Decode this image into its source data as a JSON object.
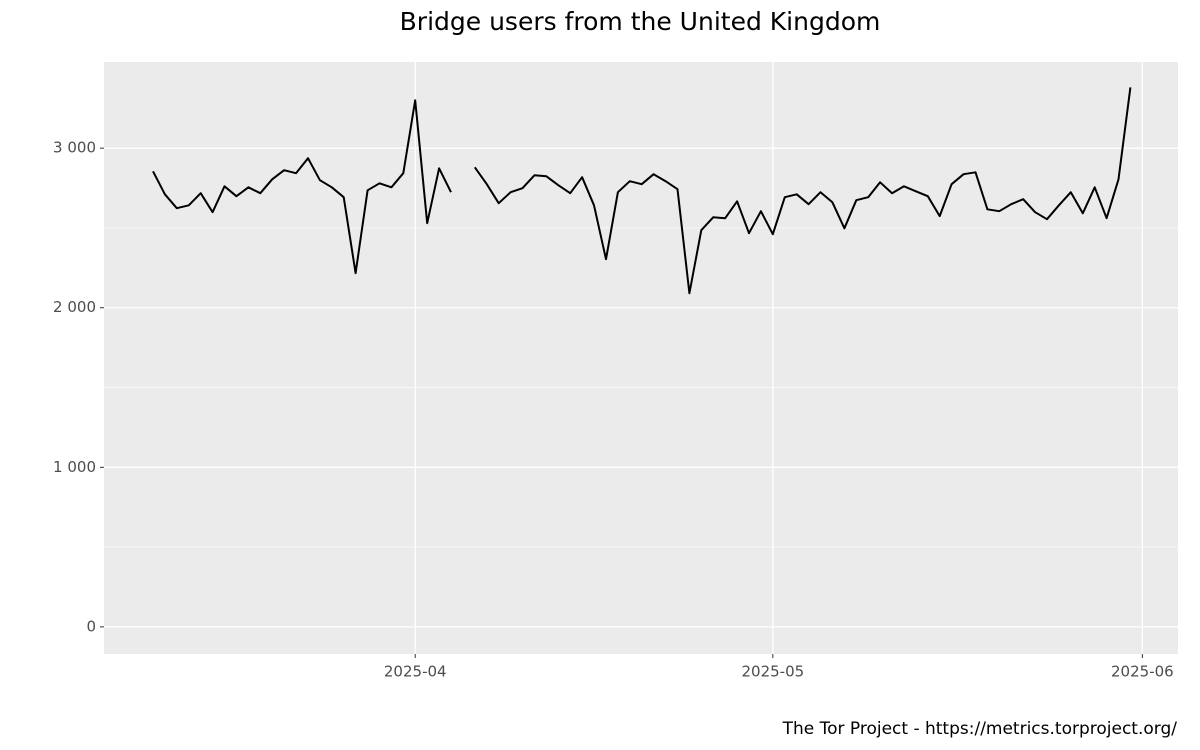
{
  "chart_data": {
    "type": "line",
    "title": "Bridge users from the United Kingdom",
    "caption": "The Tor Project - https://metrics.torproject.org/",
    "categories": [
      null,
      null,
      null,
      null,
      null,
      null,
      null,
      null,
      null,
      null,
      null,
      null,
      null,
      null,
      null,
      null,
      null,
      null,
      null,
      null,
      null,
      null,
      "2025-04",
      null,
      null,
      null,
      null,
      null,
      null,
      null,
      null,
      null,
      null,
      null,
      null,
      null,
      null,
      null,
      null,
      null,
      null,
      null,
      null,
      null,
      null,
      null,
      null,
      null,
      null,
      null,
      null,
      null,
      "2025-05",
      null,
      null,
      null,
      null,
      null,
      null,
      null,
      null,
      null,
      null,
      null,
      null,
      null,
      null,
      null,
      null,
      null,
      null,
      null,
      null,
      null,
      null,
      null,
      null,
      null,
      null,
      null,
      null,
      null,
      null,
      "2025-06"
    ],
    "values": [
      2855,
      2711,
      2624,
      2642,
      2718,
      2599,
      2761,
      2699,
      2755,
      2718,
      2805,
      2862,
      2843,
      2937,
      2799,
      2755,
      2693,
      2217,
      2736,
      2780,
      2755,
      2843,
      3300,
      2530,
      2874,
      2724,
      null,
      2880,
      2774,
      2655,
      2724,
      2749,
      2830,
      2824,
      2768,
      2718,
      2818,
      2642,
      2304,
      2724,
      2793,
      2774,
      2837,
      2793,
      2743,
      2091,
      2486,
      2567,
      2561,
      2667,
      2467,
      2605,
      2461,
      2693,
      2711,
      2649,
      2724,
      2661,
      2498,
      2674,
      2693,
      2786,
      2718,
      2761,
      2730,
      2699,
      2574,
      2774,
      2837,
      2849,
      2617,
      2605,
      2649,
      2680,
      2599,
      2555,
      2642,
      2724,
      2592,
      2755,
      2561,
      2805,
      3381,
      null
    ],
    "color": "#000000",
    "ylim": [
      -170,
      3540
    ],
    "yticks": [
      0,
      {
        "value": 1000,
        "label": "1 000"
      },
      {
        "value": 2000,
        "label": "2 000"
      },
      {
        "value": 3000,
        "label": "3 000"
      }
    ],
    "grid": true
  }
}
